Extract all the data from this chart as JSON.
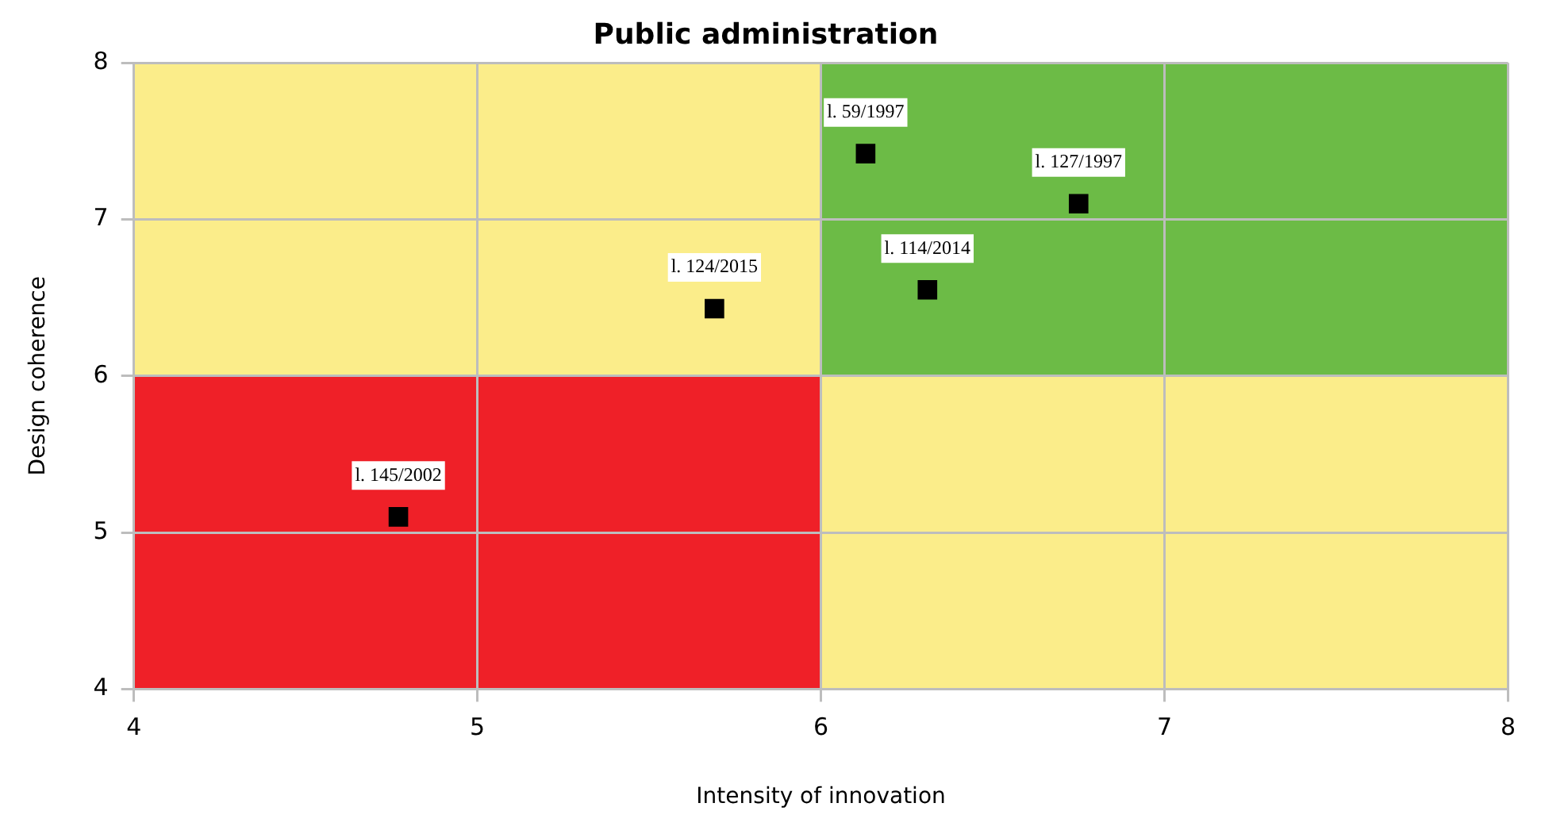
{
  "chart_data": {
    "type": "scatter",
    "title": "Public administration",
    "xlabel": "Intensity of innovation",
    "ylabel": "Design coherence",
    "x": [
      6.13,
      6.75,
      6.31,
      5.69,
      4.77
    ],
    "series": [
      {
        "color": "#000000",
        "values": [
          7.42,
          7.1,
          6.55,
          6.43,
          5.1
        ]
      }
    ],
    "xlim": [
      4,
      8
    ],
    "xticks": [
      4,
      5,
      6,
      7,
      8
    ],
    "ylim": [
      4,
      8
    ],
    "yticks": [
      4,
      5,
      6,
      7,
      8
    ],
    "grid": true,
    "legend": false,
    "marker": "square",
    "annotations": [
      {
        "text": "l. 59/1997",
        "x": 6.13,
        "y": 7.42
      },
      {
        "text": "l. 127/1997",
        "x": 6.75,
        "y": 7.1
      },
      {
        "text": "l. 114/2014",
        "x": 6.31,
        "y": 6.55
      },
      {
        "text": "l. 124/2015",
        "x": 5.69,
        "y": 6.43
      },
      {
        "text": "l. 145/2002",
        "x": 4.77,
        "y": 5.1
      }
    ]
  }
}
